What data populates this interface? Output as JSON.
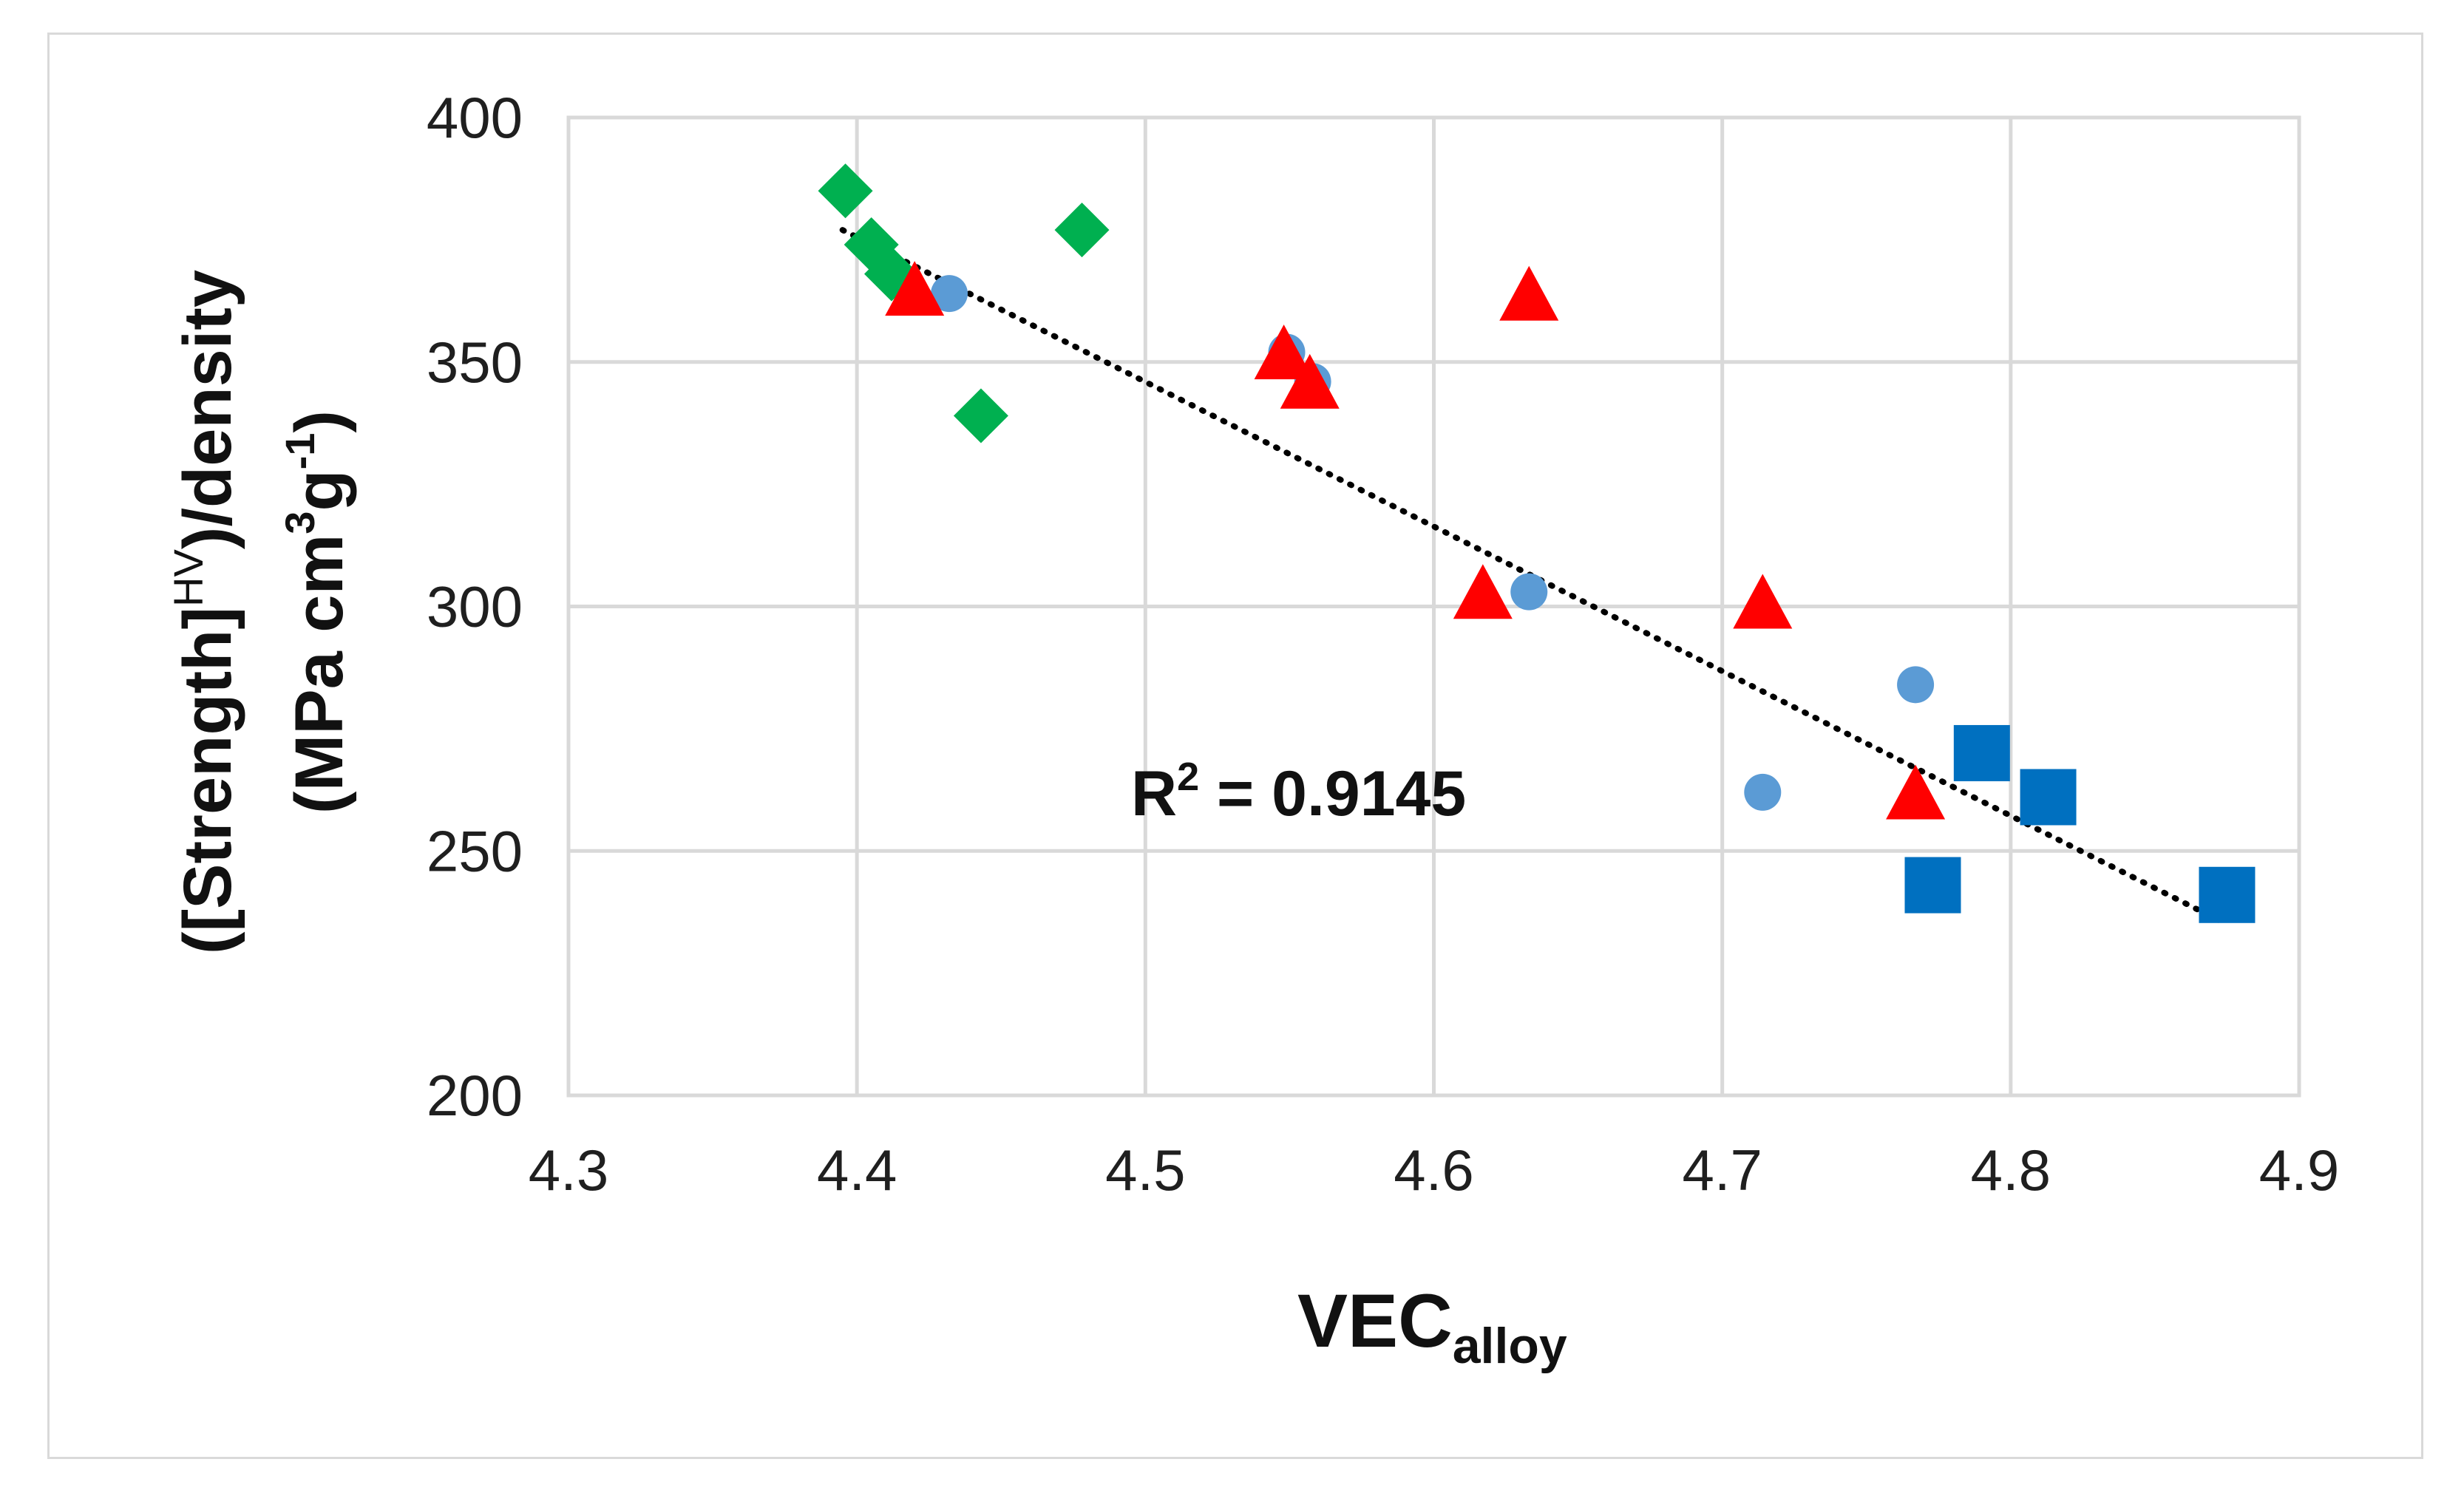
{
  "chart_data": {
    "type": "scatter",
    "title": "",
    "xlabel": {
      "main": "VEC",
      "sub": "alloy"
    },
    "ylabel": {
      "line1_a": "([Strength]",
      "line1_sup": "HV",
      "line1_b": ")/density",
      "line2_a": "(MPa cm",
      "line2_sup1": "3",
      "line2_b": "g",
      "line2_sup2": "-1",
      "line2_c": ")"
    },
    "xlim": [
      4.3,
      4.9
    ],
    "ylim": [
      200,
      400
    ],
    "xticks": [
      4.3,
      4.4,
      4.5,
      4.6,
      4.7,
      4.8,
      4.9
    ],
    "xtick_labels": [
      "4.3",
      "4.4",
      "4.5",
      "4.6",
      "4.7",
      "4.8",
      "4.9"
    ],
    "yticks": [
      200,
      250,
      300,
      350,
      400
    ],
    "ytick_labels": [
      "200",
      "250",
      "300",
      "350",
      "400"
    ],
    "grid": true,
    "series": [
      {
        "name": "circles",
        "marker": "circle",
        "color": "#5b9bd5",
        "x": [
          4.432,
          4.549,
          4.558,
          4.633,
          4.714,
          4.767
        ],
        "y": [
          364,
          352,
          346,
          303,
          262,
          284
        ]
      },
      {
        "name": "diamonds",
        "marker": "diamond",
        "color": "#00b050",
        "x": [
          4.396,
          4.405,
          4.412,
          4.443,
          4.478
        ],
        "y": [
          385,
          374,
          368,
          339,
          377
        ]
      },
      {
        "name": "triangles",
        "marker": "triangle",
        "color": "#ff0000",
        "x": [
          4.42,
          4.548,
          4.557,
          4.617,
          4.633,
          4.714,
          4.767
        ],
        "y": [
          364,
          351,
          345,
          302,
          363,
          300,
          261
        ]
      },
      {
        "name": "squares",
        "marker": "square",
        "color": "#0070c0",
        "x": [
          4.773,
          4.79,
          4.813,
          4.875
        ],
        "y": [
          243,
          270,
          261,
          241
        ]
      }
    ],
    "trendline": {
      "style": "dotted",
      "color": "#000000",
      "x": [
        4.395,
        4.875
      ],
      "y": [
        377,
        235
      ]
    },
    "annotation": {
      "text_main": "R",
      "text_sup": "2",
      "text_rest": " = 0.9145"
    }
  }
}
